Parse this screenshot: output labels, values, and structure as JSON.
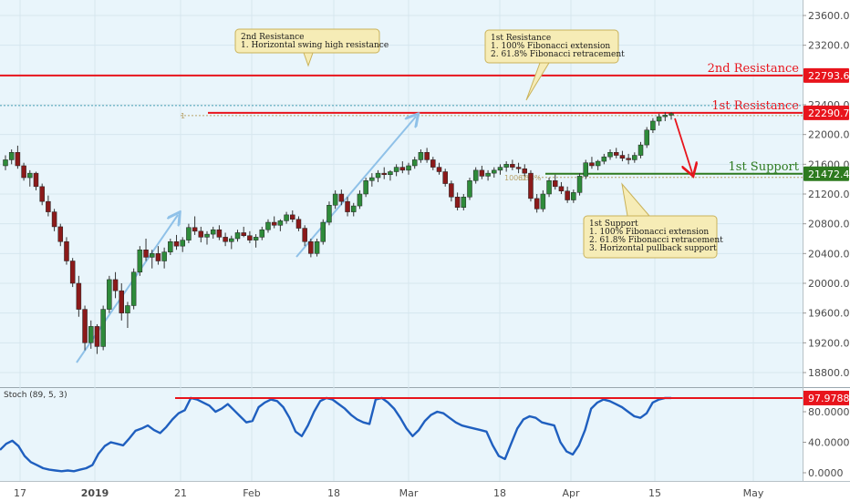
{
  "chart_data": {
    "type": "candlestick",
    "price_axis": {
      "ticks": [
        "23600.0",
        "23200.0",
        "22800.0",
        "22400.0",
        "22000.0",
        "21600.0",
        "21200.0",
        "20800.0",
        "20400.0",
        "20000.0",
        "19600.0",
        "19200.0",
        "18800.0"
      ],
      "range": [
        18600,
        23800
      ]
    },
    "x_axis": {
      "ticks": [
        "17",
        "2019",
        "21",
        "Feb",
        "18",
        "Mar",
        "18",
        "Apr",
        "15",
        "May"
      ]
    },
    "levels": [
      {
        "name": "2nd Resistance",
        "value": 22793.6,
        "label": "2nd Resistance",
        "badge": "22793.6",
        "color": "#e8141c"
      },
      {
        "name": "1st Resistance",
        "value": 22290.7,
        "label": "1st Resistance",
        "badge": "22290.7",
        "color": "#e8141c"
      },
      {
        "name": "1st Support",
        "value": 21472.4,
        "label": "1st Support",
        "badge": "21472.4",
        "color": "#2d7a1f"
      }
    ],
    "fib_labels": [
      "1",
      "100.0%",
      "61.8%"
    ],
    "callouts": [
      {
        "id": "r2",
        "lines": [
          "2nd Resistance",
          "1. Horizontal swing high resistance"
        ]
      },
      {
        "id": "r1",
        "lines": [
          "1st Resistance",
          "1. 100% Fibonacci extension",
          "2. 61.8% Fibonacci retracement"
        ]
      },
      {
        "id": "s1",
        "lines": [
          "1st Support",
          "1. 100% Fibonacci extension",
          "2. 61.8% Fibonacci retracement",
          "3. Horizontal pullback support"
        ]
      }
    ],
    "indicator": {
      "title": "Stoch (89, 5, 3)",
      "ticks": [
        "80.0000",
        "40.0000",
        "0.0000"
      ],
      "range": [
        -5,
        100
      ],
      "level": 97.9788,
      "badge": "97.9788",
      "values": [
        30,
        38,
        42,
        35,
        22,
        14,
        10,
        6,
        4,
        3,
        2,
        3,
        2,
        4,
        6,
        10,
        25,
        35,
        40,
        38,
        36,
        45,
        55,
        58,
        62,
        56,
        52,
        60,
        70,
        78,
        82,
        98,
        96,
        92,
        88,
        80,
        84,
        90,
        82,
        74,
        66,
        68,
        86,
        92,
        96,
        94,
        86,
        72,
        54,
        48,
        62,
        80,
        94,
        98,
        96,
        90,
        84,
        76,
        70,
        66,
        64,
        96,
        98,
        92,
        84,
        72,
        58,
        48,
        56,
        68,
        76,
        80,
        78,
        72,
        66,
        62,
        60,
        58,
        56,
        54,
        36,
        22,
        18,
        38,
        58,
        70,
        74,
        72,
        66,
        64,
        62,
        40,
        28,
        24,
        36,
        56,
        84,
        92,
        96,
        94,
        90,
        86,
        80,
        74,
        72,
        78,
        92,
        96,
        98,
        98
      ]
    },
    "candles": [
      [
        21580,
        21720,
        21520,
        21660
      ],
      [
        21660,
        21800,
        21600,
        21760
      ],
      [
        21760,
        21850,
        21540,
        21580
      ],
      [
        21580,
        21620,
        21380,
        21420
      ],
      [
        21420,
        21520,
        21300,
        21480
      ],
      [
        21480,
        21500,
        21250,
        21300
      ],
      [
        21300,
        21340,
        21050,
        21100
      ],
      [
        21100,
        21180,
        20900,
        20960
      ],
      [
        20960,
        21000,
        20700,
        20760
      ],
      [
        20760,
        20800,
        20500,
        20560
      ],
      [
        20560,
        20620,
        20250,
        20300
      ],
      [
        20300,
        20340,
        19950,
        20000
      ],
      [
        20000,
        20100,
        19550,
        19650
      ],
      [
        19650,
        19700,
        19100,
        19200
      ],
      [
        19200,
        19500,
        19120,
        19420
      ],
      [
        19420,
        19450,
        19050,
        19150
      ],
      [
        19150,
        19700,
        19100,
        19650
      ],
      [
        19650,
        20100,
        19600,
        20050
      ],
      [
        20050,
        20150,
        19800,
        19900
      ],
      [
        19900,
        20000,
        19500,
        19600
      ],
      [
        19600,
        19750,
        19400,
        19700
      ],
      [
        19700,
        20200,
        19650,
        20150
      ],
      [
        20150,
        20500,
        20100,
        20450
      ],
      [
        20450,
        20600,
        20300,
        20350
      ],
      [
        20350,
        20450,
        20200,
        20400
      ],
      [
        20400,
        20500,
        20250,
        20300
      ],
      [
        20300,
        20480,
        20200,
        20420
      ],
      [
        20420,
        20600,
        20380,
        20560
      ],
      [
        20560,
        20650,
        20450,
        20500
      ],
      [
        20500,
        20620,
        20420,
        20580
      ],
      [
        20580,
        20800,
        20540,
        20750
      ],
      [
        20750,
        20900,
        20650,
        20700
      ],
      [
        20700,
        20760,
        20550,
        20620
      ],
      [
        20620,
        20700,
        20520,
        20660
      ],
      [
        20660,
        20760,
        20600,
        20720
      ],
      [
        20720,
        20780,
        20580,
        20620
      ],
      [
        20620,
        20680,
        20500,
        20560
      ],
      [
        20560,
        20640,
        20460,
        20600
      ],
      [
        20600,
        20720,
        20560,
        20680
      ],
      [
        20680,
        20760,
        20620,
        20640
      ],
      [
        20640,
        20700,
        20540,
        20580
      ],
      [
        20580,
        20660,
        20480,
        20620
      ],
      [
        20620,
        20760,
        20580,
        20720
      ],
      [
        20720,
        20860,
        20680,
        20820
      ],
      [
        20820,
        20900,
        20740,
        20780
      ],
      [
        20780,
        20860,
        20700,
        20840
      ],
      [
        20840,
        20960,
        20800,
        20920
      ],
      [
        20920,
        20980,
        20820,
        20860
      ],
      [
        20860,
        20900,
        20700,
        20740
      ],
      [
        20740,
        20780,
        20500,
        20560
      ],
      [
        20560,
        20600,
        20350,
        20400
      ],
      [
        20400,
        20600,
        20360,
        20560
      ],
      [
        20560,
        20860,
        20520,
        20820
      ],
      [
        20820,
        21100,
        20780,
        21050
      ],
      [
        21050,
        21250,
        21000,
        21200
      ],
      [
        21200,
        21260,
        21050,
        21100
      ],
      [
        21100,
        21160,
        20900,
        20960
      ],
      [
        20960,
        21080,
        20900,
        21040
      ],
      [
        21040,
        21250,
        21000,
        21200
      ],
      [
        21200,
        21420,
        21160,
        21380
      ],
      [
        21380,
        21480,
        21300,
        21420
      ],
      [
        21420,
        21520,
        21360,
        21480
      ],
      [
        21480,
        21560,
        21400,
        21460
      ],
      [
        21460,
        21520,
        21380,
        21500
      ],
      [
        21500,
        21600,
        21440,
        21560
      ],
      [
        21560,
        21640,
        21480,
        21520
      ],
      [
        21520,
        21620,
        21460,
        21580
      ],
      [
        21580,
        21700,
        21540,
        21660
      ],
      [
        21660,
        21800,
        21620,
        21760
      ],
      [
        21760,
        21820,
        21620,
        21660
      ],
      [
        21660,
        21700,
        21520,
        21560
      ],
      [
        21560,
        21620,
        21460,
        21500
      ],
      [
        21500,
        21540,
        21300,
        21340
      ],
      [
        21340,
        21380,
        21100,
        21160
      ],
      [
        21160,
        21220,
        20980,
        21020
      ],
      [
        21020,
        21200,
        20980,
        21160
      ],
      [
        21160,
        21420,
        21120,
        21380
      ],
      [
        21380,
        21560,
        21340,
        21520
      ],
      [
        21520,
        21580,
        21400,
        21440
      ],
      [
        21440,
        21520,
        21380,
        21480
      ],
      [
        21480,
        21560,
        21420,
        21520
      ],
      [
        21520,
        21600,
        21460,
        21560
      ],
      [
        21560,
        21640,
        21500,
        21600
      ],
      [
        21600,
        21660,
        21520,
        21560
      ],
      [
        21560,
        21620,
        21480,
        21540
      ],
      [
        21540,
        21600,
        21440,
        21480
      ],
      [
        21480,
        21520,
        21100,
        21140
      ],
      [
        21140,
        21200,
        20950,
        21000
      ],
      [
        21000,
        21250,
        20960,
        21200
      ],
      [
        21200,
        21420,
        21160,
        21380
      ],
      [
        21380,
        21460,
        21260,
        21300
      ],
      [
        21300,
        21360,
        21200,
        21240
      ],
      [
        21240,
        21300,
        21080,
        21120
      ],
      [
        21120,
        21260,
        21080,
        21220
      ],
      [
        21220,
        21480,
        21180,
        21440
      ],
      [
        21440,
        21660,
        21400,
        21620
      ],
      [
        21620,
        21700,
        21540,
        21580
      ],
      [
        21580,
        21660,
        21520,
        21640
      ],
      [
        21640,
        21740,
        21600,
        21700
      ],
      [
        21700,
        21800,
        21660,
        21760
      ],
      [
        21760,
        21820,
        21680,
        21720
      ],
      [
        21720,
        21780,
        21640,
        21680
      ],
      [
        21680,
        21740,
        21600,
        21660
      ],
      [
        21660,
        21760,
        21620,
        21720
      ],
      [
        21720,
        21900,
        21680,
        21860
      ],
      [
        21860,
        22100,
        21820,
        22060
      ],
      [
        22060,
        22220,
        22020,
        22180
      ],
      [
        22180,
        22280,
        22120,
        22240
      ],
      [
        22240,
        22300,
        22180,
        22260
      ],
      [
        22260,
        22300,
        22200,
        22280
      ]
    ]
  }
}
